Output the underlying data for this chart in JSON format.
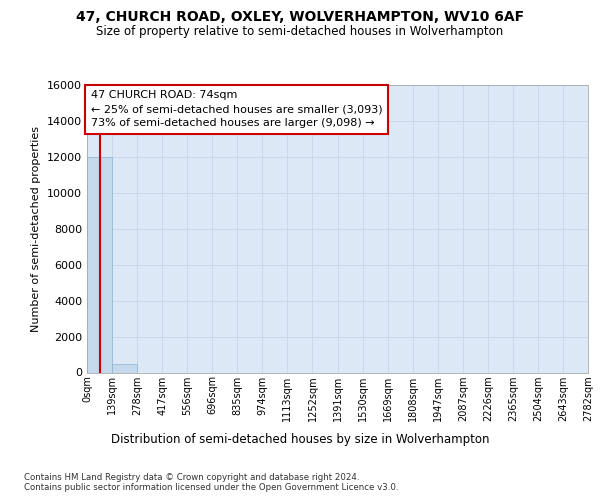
{
  "title_line1": "47, CHURCH ROAD, OXLEY, WOLVERHAMPTON, WV10 6AF",
  "title_line2": "Size of property relative to semi-detached houses in Wolverhampton",
  "xlabel": "Distribution of semi-detached houses by size in Wolverhampton",
  "ylabel": "Number of semi-detached properties",
  "footnote1": "Contains HM Land Registry data © Crown copyright and database right 2024.",
  "footnote2": "Contains public sector information licensed under the Open Government Licence v3.0.",
  "annotation_title": "47 CHURCH ROAD: 74sqm",
  "annotation_line1": "← 25% of semi-detached houses are smaller (3,093)",
  "annotation_line2": "73% of semi-detached houses are larger (9,098) →",
  "property_size": 74,
  "ylim": [
    0,
    16000
  ],
  "yticks": [
    0,
    2000,
    4000,
    6000,
    8000,
    10000,
    12000,
    14000,
    16000
  ],
  "bin_edges": [
    0,
    139,
    278,
    417,
    556,
    696,
    835,
    974,
    1113,
    1252,
    1391,
    1530,
    1669,
    1808,
    1947,
    2087,
    2226,
    2365,
    2504,
    2643,
    2782
  ],
  "bin_labels": [
    "0sqm",
    "139sqm",
    "278sqm",
    "417sqm",
    "556sqm",
    "696sqm",
    "835sqm",
    "974sqm",
    "1113sqm",
    "1252sqm",
    "1391sqm",
    "1530sqm",
    "1669sqm",
    "1808sqm",
    "1947sqm",
    "2087sqm",
    "2226sqm",
    "2365sqm",
    "2504sqm",
    "2643sqm",
    "2782sqm"
  ],
  "bar_heights": [
    12000,
    500,
    0,
    0,
    0,
    0,
    0,
    0,
    0,
    0,
    0,
    0,
    0,
    0,
    0,
    0,
    0,
    0,
    0,
    0
  ],
  "bar_color": "#c5d9ed",
  "bar_edge_color": "#8ab4d4",
  "grid_color": "#c8d8ea",
  "bg_color": "#dce8f5",
  "red_line_color": "#cc0000",
  "fig_bg": "#ffffff"
}
